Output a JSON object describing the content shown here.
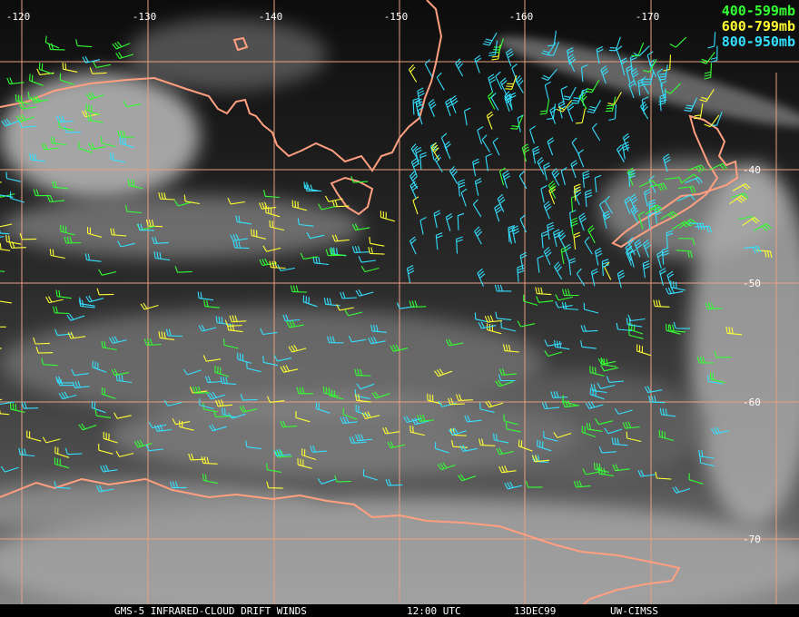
{
  "map": {
    "longitude_labels": [
      "-120",
      "-130",
      "-140",
      "-150",
      "-160",
      "-170"
    ],
    "latitude_labels": [
      "-40",
      "-50",
      "-60",
      "-70"
    ],
    "legend": [
      {
        "label": "400-599mb",
        "color": "#33ff33"
      },
      {
        "label": "600-799mb",
        "color": "#ffff33"
      },
      {
        "label": "800-950mb",
        "color": "#33e0ff"
      }
    ],
    "footer": {
      "product": "GMS-5 INFRARED-CLOUD DRIFT WINDS",
      "time": "12:00 UTC",
      "date": "13DEC99",
      "source": "UW-CIMSS"
    }
  }
}
